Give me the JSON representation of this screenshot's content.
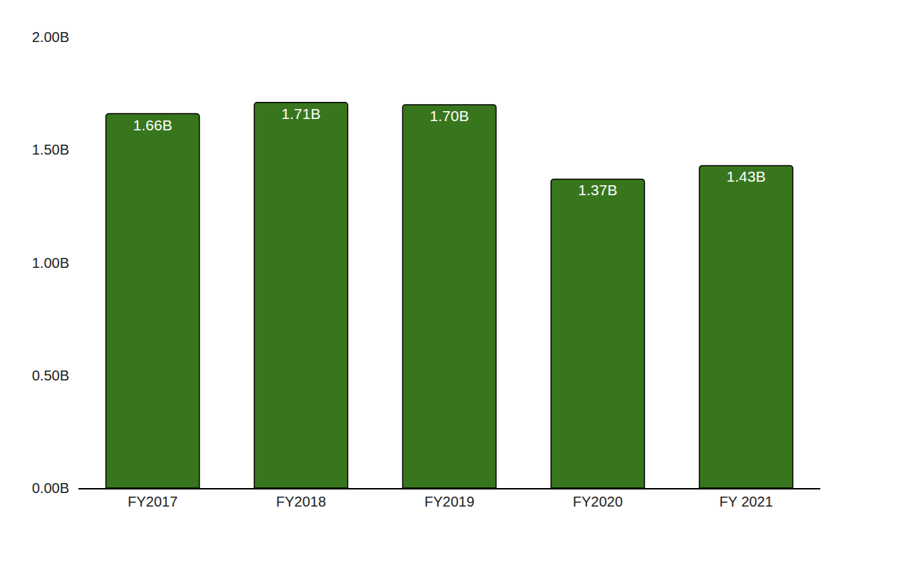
{
  "chart_data": {
    "type": "bar",
    "categories": [
      "FY2017",
      "FY2018",
      "FY2019",
      "FY2020",
      "FY 2021"
    ],
    "values": [
      1660000000,
      1710000000,
      1700000000,
      1370000000,
      1430000000
    ],
    "value_labels": [
      "1.66B",
      "1.71B",
      "1.70B",
      "1.37B",
      "1.43B"
    ],
    "data_labels": true,
    "color": "#38761d",
    "ylim": [
      0,
      2000000000
    ],
    "yticks": [
      {
        "value": 0,
        "label": "0.00B"
      },
      {
        "value": 500000000,
        "label": "0.50B"
      },
      {
        "value": 1000000000,
        "label": "1.00B"
      },
      {
        "value": 1500000000,
        "label": "1.50B"
      },
      {
        "value": 2000000000,
        "label": "2.00B"
      }
    ],
    "grid": false
  }
}
